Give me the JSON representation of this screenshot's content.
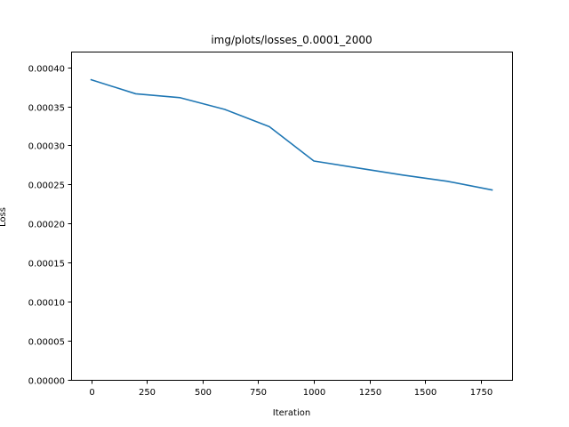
{
  "chart_data": {
    "type": "line",
    "title": "img/plots/losses_0.0001_2000",
    "xlabel": "Iteration",
    "ylabel": "Loss",
    "xlim": [
      -90,
      1890
    ],
    "ylim": [
      0,
      0.00042
    ],
    "xticks": [
      0,
      250,
      500,
      750,
      1000,
      1250,
      1500,
      1750
    ],
    "xtick_labels": [
      "0",
      "250",
      "500",
      "750",
      "1000",
      "1250",
      "1500",
      "1750"
    ],
    "yticks": [
      0,
      5e-05,
      0.0001,
      0.00015,
      0.0002,
      0.00025,
      0.0003,
      0.00035,
      0.0004
    ],
    "ytick_labels": [
      "0.00000",
      "0.00005",
      "0.00010",
      "0.00015",
      "0.00020",
      "0.00025",
      "0.00030",
      "0.00035",
      "0.00040"
    ],
    "grid": false,
    "series": [
      {
        "color": "#1f77b4",
        "x": [
          0,
          200,
          400,
          600,
          800,
          1000,
          1200,
          1400,
          1600,
          1800
        ],
        "y": [
          0.000384,
          0.000366,
          0.000361,
          0.000346,
          0.000324,
          0.00028,
          0.000271,
          0.000262,
          0.000254,
          0.000243
        ]
      }
    ]
  }
}
